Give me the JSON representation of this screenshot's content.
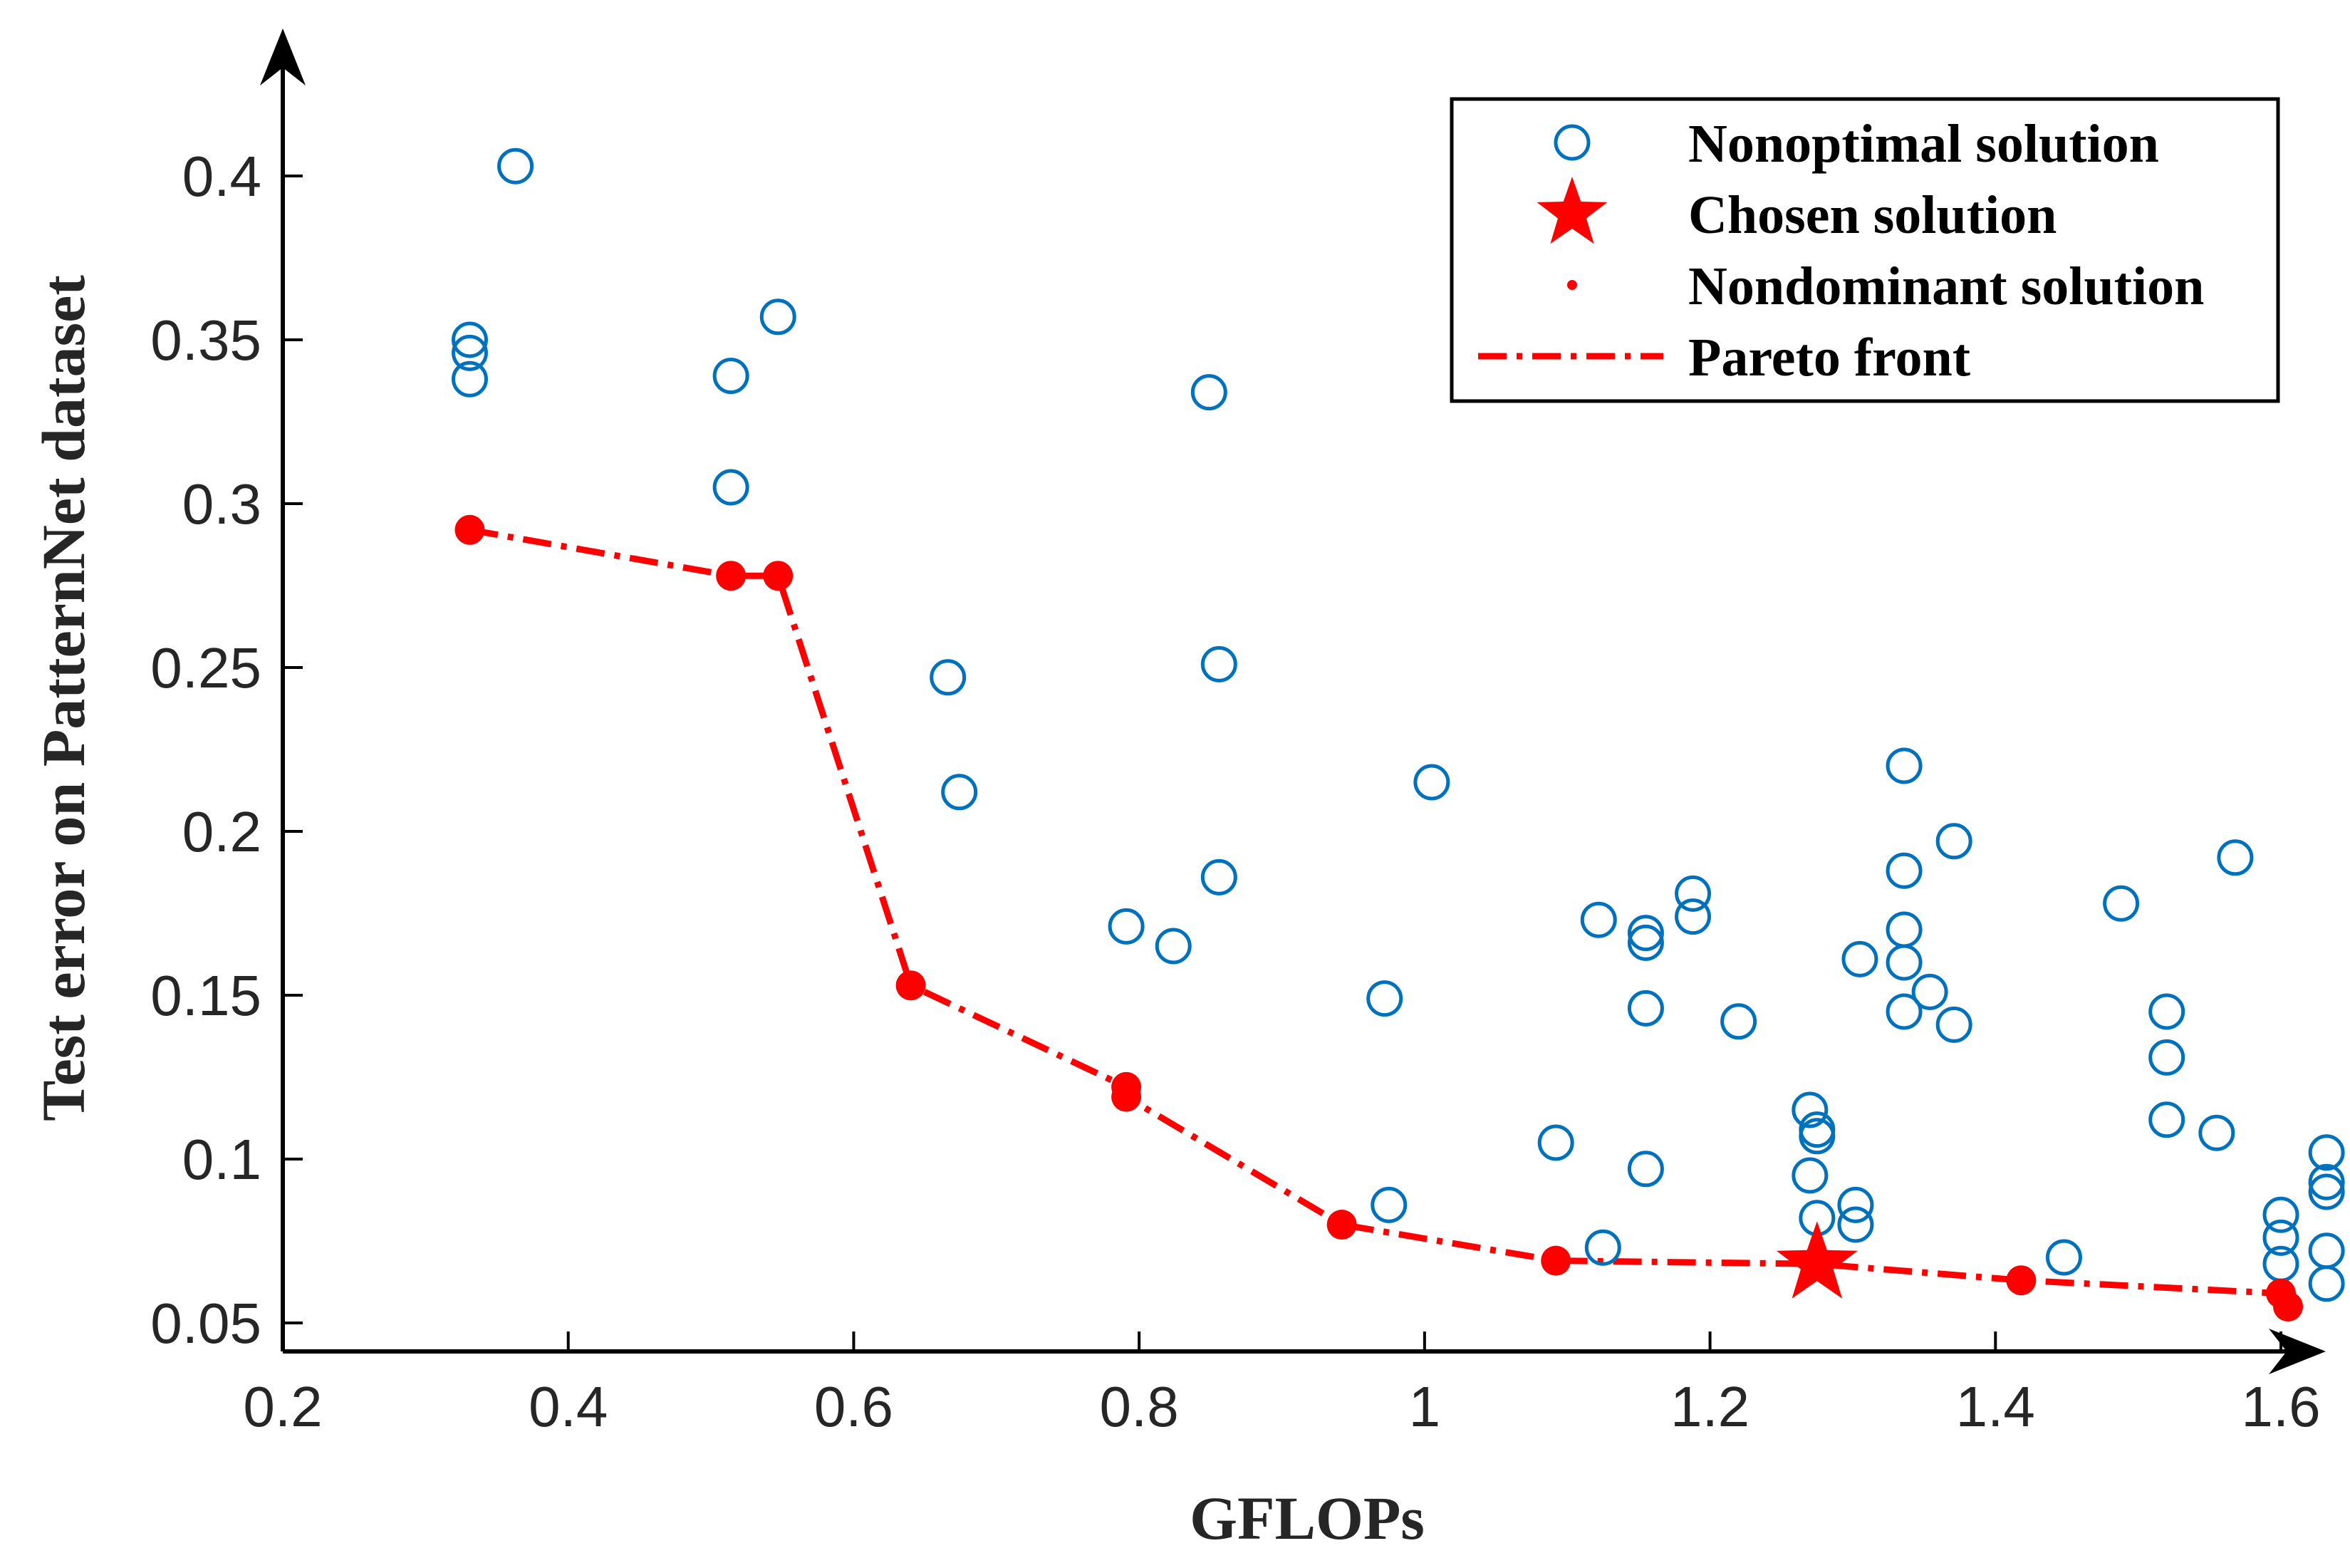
{
  "chart_data": {
    "type": "scatter",
    "title": "",
    "xlabel": "GFLOPs",
    "ylabel": "Test error on PatternNet dataset",
    "xlim": [
      0.2,
      1.65
    ],
    "ylim": [
      0.041,
      0.43
    ],
    "x_ticks": [
      0.2,
      0.4,
      0.6,
      0.8,
      1.0,
      1.2,
      1.4,
      1.6
    ],
    "x_tick_labels": [
      "0.2",
      "0.4",
      "0.6",
      "0.8",
      "1",
      "1.2",
      "1.4",
      "1.6"
    ],
    "y_ticks": [
      0.05,
      0.1,
      0.15,
      0.2,
      0.25,
      0.3,
      0.35,
      0.4
    ],
    "y_tick_labels": [
      "0.05",
      "0.1",
      "0.15",
      "0.2",
      "0.25",
      "0.3",
      "0.35",
      "0.4"
    ],
    "grid": false,
    "legend_position": "top-right",
    "colors": {
      "nonoptimal": "#0072BD",
      "pareto": "#FF0000",
      "axis": "#000000"
    },
    "series": [
      {
        "name": "Nonoptimal solution",
        "marker": "open-circle",
        "points": [
          [
            0.363,
            0.403
          ],
          [
            0.331,
            0.35
          ],
          [
            0.331,
            0.346
          ],
          [
            0.331,
            0.338
          ],
          [
            0.514,
            0.339
          ],
          [
            0.547,
            0.357
          ],
          [
            0.514,
            0.305
          ],
          [
            0.849,
            0.334
          ],
          [
            0.666,
            0.247
          ],
          [
            0.856,
            0.251
          ],
          [
            0.674,
            0.212
          ],
          [
            1.005,
            0.215
          ],
          [
            0.856,
            0.186
          ],
          [
            0.791,
            0.171
          ],
          [
            0.824,
            0.165
          ],
          [
            0.972,
            0.149
          ],
          [
            1.122,
            0.173
          ],
          [
            1.155,
            0.169
          ],
          [
            1.155,
            0.166
          ],
          [
            1.188,
            0.181
          ],
          [
            1.188,
            0.174
          ],
          [
            1.155,
            0.146
          ],
          [
            1.22,
            0.142
          ],
          [
            1.336,
            0.22
          ],
          [
            1.336,
            0.188
          ],
          [
            1.371,
            0.197
          ],
          [
            1.305,
            0.161
          ],
          [
            1.336,
            0.17
          ],
          [
            1.336,
            0.16
          ],
          [
            1.354,
            0.151
          ],
          [
            1.336,
            0.145
          ],
          [
            1.371,
            0.141
          ],
          [
            1.488,
            0.178
          ],
          [
            1.568,
            0.192
          ],
          [
            1.52,
            0.145
          ],
          [
            1.52,
            0.131
          ],
          [
            1.52,
            0.112
          ],
          [
            1.555,
            0.108
          ],
          [
            1.27,
            0.115
          ],
          [
            1.275,
            0.109
          ],
          [
            1.275,
            0.107
          ],
          [
            1.27,
            0.095
          ],
          [
            1.275,
            0.082
          ],
          [
            1.302,
            0.086
          ],
          [
            1.302,
            0.08
          ],
          [
            1.155,
            0.097
          ],
          [
            1.092,
            0.105
          ],
          [
            1.125,
            0.073
          ],
          [
            0.975,
            0.086
          ],
          [
            1.448,
            0.07
          ],
          [
            1.6,
            0.083
          ],
          [
            1.6,
            0.076
          ],
          [
            1.6,
            0.068
          ],
          [
            1.632,
            0.102
          ],
          [
            1.632,
            0.093
          ],
          [
            1.632,
            0.09
          ],
          [
            1.632,
            0.072
          ],
          [
            1.632,
            0.062
          ]
        ]
      },
      {
        "name": "Chosen solution",
        "marker": "star",
        "points": [
          [
            1.275,
            0.068
          ]
        ]
      },
      {
        "name": "Nondominant solution",
        "marker": "filled-dot",
        "points": [
          [
            0.331,
            0.292
          ],
          [
            0.514,
            0.278
          ],
          [
            0.547,
            0.278
          ],
          [
            0.64,
            0.153
          ],
          [
            0.791,
            0.122
          ],
          [
            0.791,
            0.119
          ],
          [
            0.942,
            0.08
          ],
          [
            1.092,
            0.069
          ],
          [
            1.418,
            0.063
          ],
          [
            1.6,
            0.059
          ],
          [
            1.605,
            0.055
          ]
        ]
      },
      {
        "name": "Pareto front",
        "marker": "dash-dot-line",
        "points": [
          [
            0.331,
            0.292
          ],
          [
            0.514,
            0.278
          ],
          [
            0.547,
            0.278
          ],
          [
            0.64,
            0.153
          ],
          [
            0.791,
            0.122
          ],
          [
            0.791,
            0.119
          ],
          [
            0.942,
            0.08
          ],
          [
            1.092,
            0.069
          ],
          [
            1.275,
            0.068
          ],
          [
            1.418,
            0.063
          ],
          [
            1.6,
            0.059
          ],
          [
            1.605,
            0.055
          ]
        ]
      }
    ]
  }
}
